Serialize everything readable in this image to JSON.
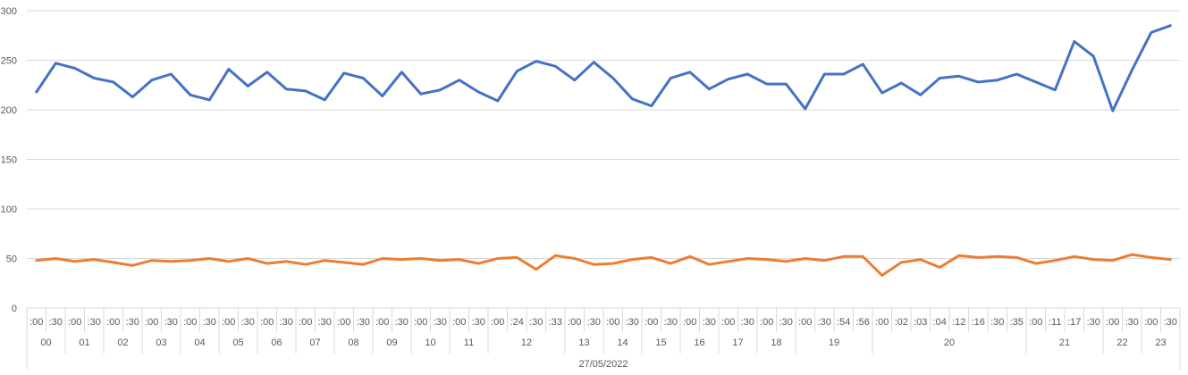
{
  "chart_data": {
    "type": "line",
    "ylim": [
      0,
      300
    ],
    "yticks": [
      0,
      50,
      100,
      150,
      200,
      250,
      300
    ],
    "grid": true,
    "legend": "none",
    "date_label": "27/05/2022",
    "x_minutes": [
      ":00",
      ":30",
      ":00",
      ":30",
      ":00",
      ":30",
      ":00",
      ":30",
      ":00",
      ":30",
      ":00",
      ":30",
      ":00",
      ":30",
      ":00",
      ":30",
      ":00",
      ":30",
      ":00",
      ":30",
      ":00",
      ":30",
      ":00",
      ":30",
      ":00",
      ":24",
      ":30",
      ":33",
      ":00",
      ":30",
      ":00",
      ":30",
      ":00",
      ":30",
      ":00",
      ":30",
      ":00",
      ":30",
      ":00",
      ":30",
      ":00",
      ":30",
      ":54",
      ":56",
      ":00",
      ":02",
      ":03",
      ":04",
      ":12",
      ":16",
      ":30",
      ":35",
      ":00",
      ":11",
      ":17",
      ":30",
      ":00",
      ":30",
      ":00",
      ":30"
    ],
    "hour_groups": [
      {
        "label": "00",
        "count": 2
      },
      {
        "label": "01",
        "count": 2
      },
      {
        "label": "02",
        "count": 2
      },
      {
        "label": "03",
        "count": 2
      },
      {
        "label": "04",
        "count": 2
      },
      {
        "label": "05",
        "count": 2
      },
      {
        "label": "06",
        "count": 2
      },
      {
        "label": "07",
        "count": 2
      },
      {
        "label": "08",
        "count": 2
      },
      {
        "label": "09",
        "count": 2
      },
      {
        "label": "10",
        "count": 2
      },
      {
        "label": "11",
        "count": 2
      },
      {
        "label": "12",
        "count": 4
      },
      {
        "label": "13",
        "count": 2
      },
      {
        "label": "14",
        "count": 2
      },
      {
        "label": "15",
        "count": 2
      },
      {
        "label": "16",
        "count": 2
      },
      {
        "label": "17",
        "count": 2
      },
      {
        "label": "18",
        "count": 2
      },
      {
        "label": "19",
        "count": 4
      },
      {
        "label": "20",
        "count": 8
      },
      {
        "label": "21",
        "count": 4
      },
      {
        "label": "22",
        "count": 2
      },
      {
        "label": "23",
        "count": 2
      }
    ],
    "series": [
      {
        "color": "#4472c4",
        "values": [
          218,
          247,
          242,
          232,
          228,
          213,
          230,
          236,
          215,
          210,
          241,
          224,
          238,
          221,
          219,
          210,
          237,
          232,
          214,
          238,
          216,
          220,
          230,
          218,
          209,
          239,
          249,
          244,
          230,
          248,
          232,
          211,
          204,
          232,
          238,
          221,
          231,
          236,
          226,
          226,
          201,
          236,
          236,
          246,
          217,
          227,
          215,
          232,
          234,
          228,
          230,
          236,
          228,
          220,
          269,
          254,
          199,
          240,
          278,
          285
        ]
      },
      {
        "color": "#ed7d31",
        "values": [
          48,
          50,
          47,
          49,
          46,
          43,
          48,
          47,
          48,
          50,
          47,
          50,
          45,
          47,
          44,
          48,
          46,
          44,
          50,
          49,
          50,
          48,
          49,
          45,
          50,
          51,
          39,
          53,
          50,
          44,
          45,
          49,
          51,
          45,
          52,
          44,
          47,
          50,
          49,
          47,
          50,
          48,
          52,
          52,
          33,
          46,
          49,
          41,
          53,
          51,
          52,
          51,
          45,
          48,
          52,
          49,
          48,
          54,
          51,
          49
        ]
      }
    ]
  }
}
